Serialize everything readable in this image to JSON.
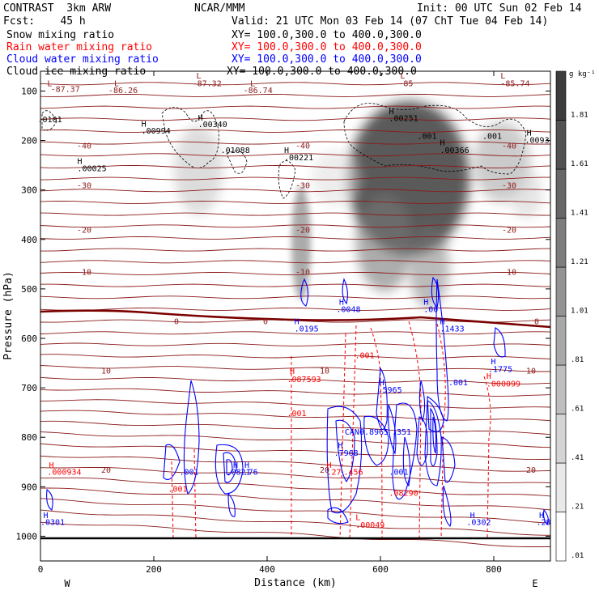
{
  "header": {
    "model": "CONTRAST  3km ARW",
    "center": "NCAR/MMM",
    "init": "Init: 00 UTC Sun 02 Feb 14",
    "fcst": "Fcst:    45 h",
    "valid": "Valid: 21 UTC Mon 03 Feb 14 (07 ChT Tue 04 Feb 14)"
  },
  "fields": [
    {
      "name": "Snow mixing ratio",
      "xsec": "XY= 100.0,300.0 to 400.0,300.0",
      "color": "#000000"
    },
    {
      "name": "Rain water mixing ratio",
      "xsec": "XY= 100.0,300.0 to 400.0,300.0",
      "color": "#ff0000"
    },
    {
      "name": "Cloud water mixing ratio",
      "xsec": "XY= 100.0,300.0 to 400.0,300.0",
      "color": "#0000ff"
    },
    {
      "name": "Cloud ice mixing ratio",
      "xsec": "XY= 100.0,300.0 to 400.0,300.0",
      "color": "#000000"
    }
  ],
  "chart_data": {
    "type": "cross-section",
    "xlabel": "Distance (km)",
    "ylabel": "Pressure (hPa)",
    "xlim": [
      0,
      900
    ],
    "ylim": [
      1050,
      60
    ],
    "xticks": [
      0,
      200,
      400,
      600,
      800
    ],
    "yticks": [
      100,
      200,
      300,
      400,
      500,
      600,
      700,
      800,
      900,
      1000
    ],
    "direction_labels": [
      "W",
      "E"
    ],
    "colorbar": {
      "unit": "g kg⁻¹",
      "levels": [
        ".01",
        ".21",
        ".41",
        ".61",
        ".81",
        "1.01",
        "1.21",
        "1.41",
        "1.61",
        "1.81"
      ]
    },
    "temperature_isotherms": [
      {
        "label": "-40",
        "p": 210
      },
      {
        "label": "-30",
        "p": 290
      },
      {
        "label": "-20",
        "p": 380
      },
      {
        "label": "-10",
        "p": 465
      },
      {
        "label": "0",
        "p": 565
      },
      {
        "label": "10",
        "p": 665
      },
      {
        "label": "20",
        "p": 865
      }
    ],
    "annotations": [
      {
        "text": "L",
        "x": 12,
        "p": 90,
        "color": "#8b1a1a"
      },
      {
        "text": "-87.37",
        "x": 18,
        "p": 102,
        "color": "#8b1a1a"
      },
      {
        "text": "L",
        "x": 130,
        "p": 90,
        "color": "#8b1a1a"
      },
      {
        "text": "-86.26",
        "x": 120,
        "p": 104,
        "color": "#8b1a1a"
      },
      {
        "text": "L",
        "x": 275,
        "p": 75,
        "color": "#8b1a1a"
      },
      {
        "text": "-87.32",
        "x": 268,
        "p": 90,
        "color": "#8b1a1a"
      },
      {
        "text": "L",
        "x": 370,
        "p": 90,
        "color": "#8b1a1a"
      },
      {
        "text": "-86.74",
        "x": 358,
        "p": 104,
        "color": "#8b1a1a"
      },
      {
        "text": "L",
        "x": 635,
        "p": 75,
        "color": "#8b1a1a"
      },
      {
        "text": "-85",
        "x": 632,
        "p": 90,
        "color": "#8b1a1a"
      },
      {
        "text": "L",
        "x": 812,
        "p": 75,
        "color": "#8b1a1a"
      },
      {
        "text": "-85.74",
        "x": 812,
        "p": 90,
        "color": "#8b1a1a"
      },
      {
        "text": ".0101",
        "x": -5,
        "p": 163,
        "color": "#000000"
      },
      {
        "text": "H",
        "x": 178,
        "p": 172,
        "color": "#000000"
      },
      {
        "text": ".00994",
        "x": 178,
        "p": 186,
        "color": "#000000"
      },
      {
        "text": "H",
        "x": 278,
        "p": 160,
        "color": "#000000"
      },
      {
        "text": ".00340",
        "x": 278,
        "p": 173,
        "color": "#000000"
      },
      {
        "text": ".01088",
        "x": 318,
        "p": 225,
        "color": "#000000"
      },
      {
        "text": "H",
        "x": 430,
        "p": 225,
        "color": "#000000"
      },
      {
        "text": ".00221",
        "x": 430,
        "p": 240,
        "color": "#000000"
      },
      {
        "text": "H",
        "x": 65,
        "p": 247,
        "color": "#000000"
      },
      {
        "text": ".00025",
        "x": 65,
        "p": 262,
        "color": "#000000"
      },
      {
        "text": "H",
        "x": 615,
        "p": 147,
        "color": "#000000"
      },
      {
        "text": ".00251",
        "x": 615,
        "p": 161,
        "color": "#000000"
      },
      {
        "text": ".001",
        "x": 665,
        "p": 197,
        "color": "#000000"
      },
      {
        "text": "H",
        "x": 705,
        "p": 210,
        "color": "#000000"
      },
      {
        "text": ".00366",
        "x": 705,
        "p": 225,
        "color": "#000000"
      },
      {
        "text": ".001",
        "x": 780,
        "p": 197,
        "color": "#000000"
      },
      {
        "text": "H",
        "x": 858,
        "p": 190,
        "color": "#000000"
      },
      {
        "text": ".0093",
        "x": 855,
        "p": 205,
        "color": "#000000"
      },
      {
        "text": "H",
        "x": 448,
        "p": 571,
        "color": "#0000ff"
      },
      {
        "text": ".0195",
        "x": 448,
        "p": 586,
        "color": "#0000ff"
      },
      {
        "text": "H",
        "x": 527,
        "p": 532,
        "color": "#0000ff"
      },
      {
        "text": ".0048",
        "x": 522,
        "p": 547,
        "color": "#0000ff"
      },
      {
        "text": "H",
        "x": 676,
        "p": 532,
        "color": "#0000ff"
      },
      {
        "text": ".00",
        "x": 676,
        "p": 547,
        "color": "#0000ff"
      },
      {
        "text": "H",
        "x": 705,
        "p": 571,
        "color": "#0000ff"
      },
      {
        "text": ".1433",
        "x": 705,
        "p": 586,
        "color": "#0000ff"
      },
      {
        "text": "H",
        "x": 795,
        "p": 652,
        "color": "#0000ff"
      },
      {
        "text": ".1775",
        "x": 790,
        "p": 668,
        "color": "#0000ff"
      },
      {
        "text": ".001",
        "x": 720,
        "p": 695,
        "color": "#0000ff"
      },
      {
        "text": "H",
        "x": 598,
        "p": 695,
        "color": "#0000ff"
      },
      {
        "text": ".5965",
        "x": 595,
        "p": 710,
        "color": "#0000ff"
      },
      {
        "text": "CAN0.8965",
        "x": 537,
        "p": 795,
        "color": "#0000ff"
      },
      {
        "text": ".351",
        "x": 620,
        "p": 795,
        "color": "#0000ff"
      },
      {
        "text": "H",
        "x": 525,
        "p": 822,
        "color": "#0000ff"
      },
      {
        "text": ".7968",
        "x": 518,
        "p": 837,
        "color": "#0000ff"
      },
      {
        "text": ".001",
        "x": 245,
        "p": 876,
        "color": "#0000ff"
      },
      {
        "text": "H",
        "x": 340,
        "p": 862,
        "color": "#0000ff"
      },
      {
        "text": ".0821",
        "x": 328,
        "p": 876,
        "color": "#0000ff"
      },
      {
        "text": "H",
        "x": 360,
        "p": 862,
        "color": "#0000ff"
      },
      {
        "text": ".76",
        "x": 358,
        "p": 876,
        "color": "#0000ff"
      },
      {
        "text": ".001",
        "x": 615,
        "p": 876,
        "color": "#0000ff"
      },
      {
        "text": "H",
        "x": 5,
        "p": 963,
        "color": "#0000ff"
      },
      {
        "text": ".0301",
        "x": 0,
        "p": 977,
        "color": "#0000ff"
      },
      {
        "text": "H",
        "x": 758,
        "p": 963,
        "color": "#0000ff"
      },
      {
        "text": ".0302",
        "x": 752,
        "p": 977,
        "color": "#0000ff"
      },
      {
        "text": "H",
        "x": 880,
        "p": 963,
        "color": "#0000ff"
      },
      {
        "text": ".28",
        "x": 875,
        "p": 977,
        "color": "#0000ff"
      },
      {
        "text": ".001",
        "x": 555,
        "p": 640,
        "color": "#ff0000"
      },
      {
        "text": "H",
        "x": 440,
        "p": 672,
        "color": "#ff0000"
      },
      {
        "text": ".087593",
        "x": 435,
        "p": 688,
        "color": "#ff0000"
      },
      {
        "text": ".001",
        "x": 435,
        "p": 757,
        "color": "#ff0000"
      },
      {
        "text": "H",
        "x": 787,
        "p": 682,
        "color": "#ff0000"
      },
      {
        "text": ".000099",
        "x": 787,
        "p": 697,
        "color": "#ff0000"
      },
      {
        "text": "H",
        "x": 15,
        "p": 862,
        "color": "#ff0000"
      },
      {
        "text": ".000934",
        "x": 12,
        "p": 876,
        "color": "#ff0000"
      },
      {
        "text": ".001",
        "x": 225,
        "p": 910,
        "color": "#ff0000"
      },
      {
        "text": "H",
        "x": 505,
        "p": 862,
        "color": "#ff0000"
      },
      {
        "text": ".27",
        "x": 505,
        "p": 876,
        "color": "#ff0000"
      },
      {
        "text": ".456",
        "x": 535,
        "p": 876,
        "color": "#ff0000"
      },
      {
        "text": ".08290",
        "x": 615,
        "p": 918,
        "color": "#ff0000"
      },
      {
        "text": "L",
        "x": 556,
        "p": 967,
        "color": "#ff0000"
      },
      {
        "text": ".00049",
        "x": 556,
        "p": 983,
        "color": "#ff0000"
      }
    ]
  }
}
